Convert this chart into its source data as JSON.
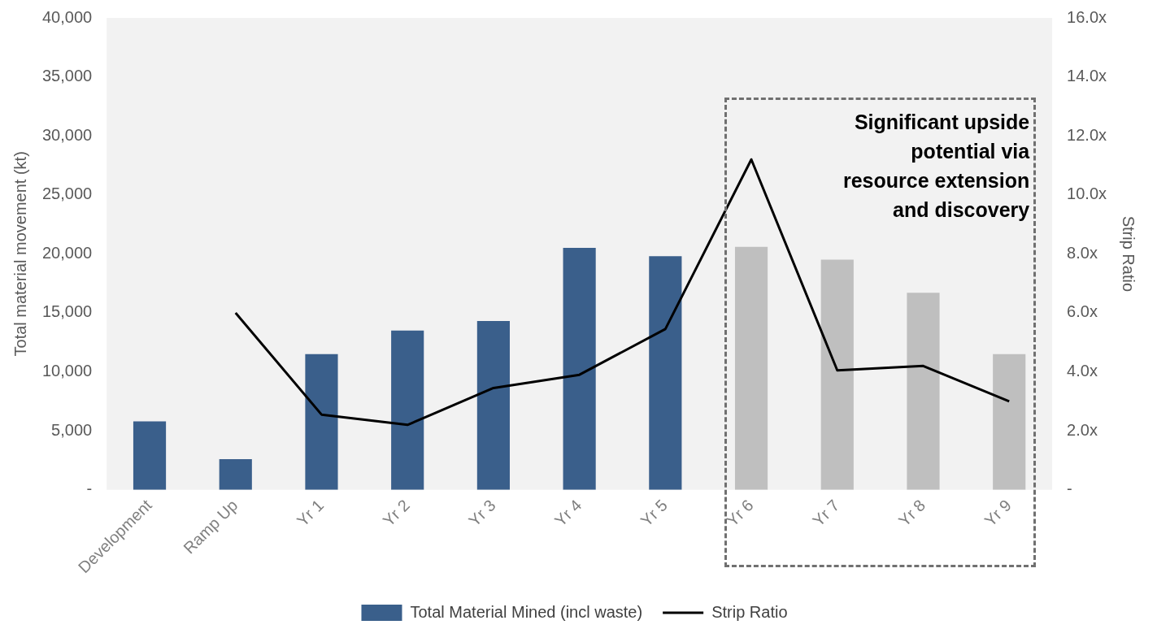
{
  "chart_data": {
    "type": "bar",
    "categories": [
      "Development",
      "Ramp Up",
      "Yr 1",
      "Yr 2",
      "Yr 3",
      "Yr 4",
      "Yr 5",
      "Yr 6",
      "Yr 7",
      "Yr 8",
      "Yr 9"
    ],
    "series": [
      {
        "name": "Total Material Mined (incl waste)",
        "color": "#3a5f8b",
        "colors": [
          "#3a5f8b",
          "#3a5f8b",
          "#3a5f8b",
          "#3a5f8b",
          "#3a5f8b",
          "#3a5f8b",
          "#3a5f8b",
          "#bfbfbf",
          "#bfbfbf",
          "#bfbfbf",
          "#bfbfbf"
        ],
        "values": [
          5800,
          2600,
          11500,
          13500,
          14300,
          20500,
          19800,
          20600,
          19500,
          16700,
          11500
        ]
      },
      {
        "name": "Strip Ratio",
        "type": "line",
        "axis": "y2",
        "color": "#000000",
        "values": [
          null,
          6.0,
          2.55,
          2.2,
          3.45,
          3.9,
          5.45,
          11.2,
          4.05,
          4.2,
          3.0
        ]
      }
    ],
    "ylabel": "Total material movement (kt)",
    "y2label": "Strip Ratio",
    "ylim": [
      0,
      40000
    ],
    "yticks": [
      {
        "value": 0,
        "label": "-"
      },
      {
        "value": 5000,
        "label": "5,000"
      },
      {
        "value": 10000,
        "label": "10,000"
      },
      {
        "value": 15000,
        "label": "15,000"
      },
      {
        "value": 20000,
        "label": "20,000"
      },
      {
        "value": 25000,
        "label": "25,000"
      },
      {
        "value": 30000,
        "label": "30,000"
      },
      {
        "value": 35000,
        "label": "35,000"
      },
      {
        "value": 40000,
        "label": "40,000"
      }
    ],
    "y2lim": [
      0,
      16
    ],
    "y2ticks": [
      {
        "value": 0,
        "label": "-"
      },
      {
        "value": 2,
        "label": "2.0x"
      },
      {
        "value": 4,
        "label": "4.0x"
      },
      {
        "value": 6,
        "label": "6.0x"
      },
      {
        "value": 8,
        "label": "8.0x"
      },
      {
        "value": 10,
        "label": "10.0x"
      },
      {
        "value": 12,
        "label": "12.0x"
      },
      {
        "value": 14,
        "label": "14.0x"
      },
      {
        "value": 16,
        "label": "16.0x"
      }
    ],
    "annotations": [
      "Significant upside potential via resource extension and discovery"
    ],
    "legend": "bottom",
    "grid": false,
    "marker": "none",
    "line_style": "solid"
  }
}
